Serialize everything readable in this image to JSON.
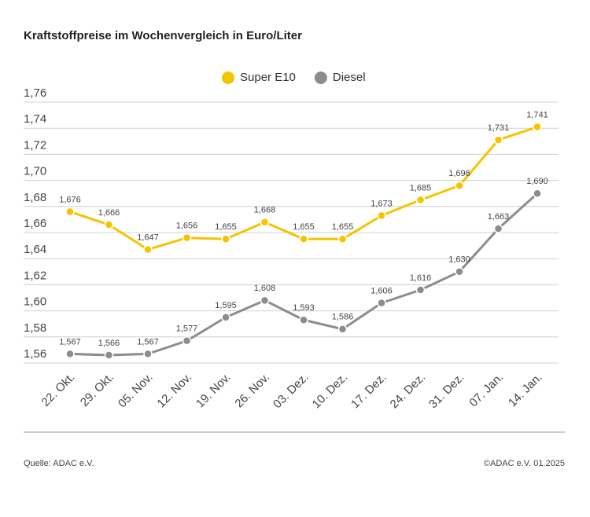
{
  "chart_data": {
    "type": "line",
    "title": "Kraftstoffpreise im Wochenvergleich in Euro/Liter",
    "categories": [
      "22. Okt.",
      "29. Okt.",
      "05. Nov.",
      "12. Nov.",
      "19. Nov.",
      "26. Nov.",
      "03. Dez.",
      "10. Dez.",
      "17. Dez.",
      "24. Dez.",
      "31. Dez.",
      "07. Jan.",
      "14. Jan."
    ],
    "series": [
      {
        "name": "Super E10",
        "color": "#f5c400",
        "values": [
          1.676,
          1.666,
          1.647,
          1.656,
          1.655,
          1.668,
          1.655,
          1.655,
          1.673,
          1.685,
          1.696,
          1.731,
          1.741
        ],
        "value_labels": [
          "1,676",
          "1,666",
          "1,647",
          "1,656",
          "1,655",
          "1,668",
          "1,655",
          "1,655",
          "1,673",
          "1,685",
          "1,696",
          "1,731",
          "1,741"
        ]
      },
      {
        "name": "Diesel",
        "color": "#8c8c8c",
        "values": [
          1.567,
          1.566,
          1.567,
          1.577,
          1.595,
          1.608,
          1.593,
          1.586,
          1.606,
          1.616,
          1.63,
          1.663,
          1.69
        ],
        "value_labels": [
          "1,567",
          "1,566",
          "1,567",
          "1,577",
          "1,595",
          "1,608",
          "1,593",
          "1,586",
          "1,606",
          "1,616",
          "1,630",
          "1,663",
          "1,690"
        ]
      }
    ],
    "ylim": [
      1.56,
      1.76
    ],
    "yticks": [
      {
        "value": 1.56,
        "label": "1,56"
      },
      {
        "value": 1.58,
        "label": "1,58"
      },
      {
        "value": 1.6,
        "label": "1,60"
      },
      {
        "value": 1.62,
        "label": "1,62"
      },
      {
        "value": 1.64,
        "label": "1,64"
      },
      {
        "value": 1.66,
        "label": "1,66"
      },
      {
        "value": 1.68,
        "label": "1,68"
      },
      {
        "value": 1.7,
        "label": "1,70"
      },
      {
        "value": 1.72,
        "label": "1,72"
      },
      {
        "value": 1.74,
        "label": "1,74"
      },
      {
        "value": 1.76,
        "label": "1,76"
      }
    ],
    "grid": true,
    "legend": "top",
    "source": "Quelle: ADAC e.V.",
    "copyright": "©ADAC e.V. 01.2025"
  }
}
